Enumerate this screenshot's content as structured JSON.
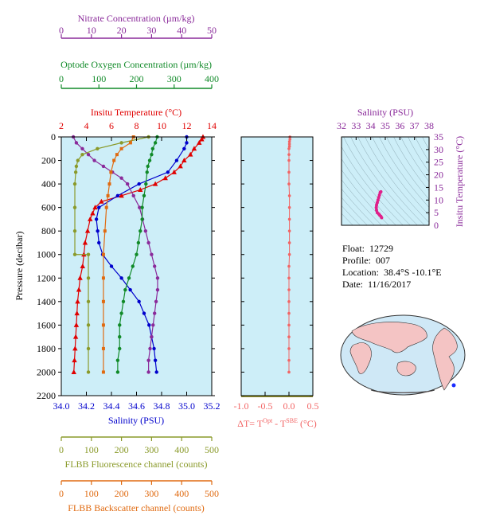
{
  "info": {
    "float_label": "Float:",
    "float_value": "12729",
    "profile_label": "Profile:",
    "profile_value": "007",
    "location_label": "Location:",
    "location_value": "38.4°S  -10.1°E",
    "date_label": "Date:",
    "date_value": "11/16/2017"
  },
  "colors": {
    "temperature": "#e00000",
    "salinity": "#0000cc",
    "nitrate": "#8a2a9a",
    "oxygen": "#108a28",
    "fluorescence": "#8a9a2a",
    "backscatter": "#e06a10",
    "delta_t": "#f26464",
    "ts": "#e0208a",
    "plot_bg": "#cdeef8",
    "axis": "#6a6a00"
  },
  "chart_data": [
    {
      "type": "line",
      "id": "main-profile",
      "ylabel": "Pressure (decibar)",
      "ylim": [
        2200,
        0
      ],
      "yticks": [
        0,
        200,
        400,
        600,
        800,
        1000,
        1200,
        1400,
        1600,
        1800,
        2000,
        2200
      ],
      "axes": {
        "temperature": {
          "label": "Insitu Temperature (°C)",
          "range": [
            2,
            14
          ],
          "ticks": [
            2,
            4,
            6,
            8,
            10,
            12,
            14
          ]
        },
        "salinity": {
          "label": "Salinity (PSU)",
          "range": [
            34.0,
            35.2
          ],
          "ticks": [
            "34.0",
            "34.2",
            "34.4",
            "34.6",
            "34.8",
            "35.0",
            "35.2"
          ]
        },
        "nitrate": {
          "label": "Nitrate Concentration (µm/kg)",
          "range": [
            0,
            50
          ],
          "ticks": [
            0,
            10,
            20,
            30,
            40,
            50
          ]
        },
        "oxygen": {
          "label": "Optode Oxygen Concentration (µm/kg)",
          "range": [
            0,
            400
          ],
          "ticks": [
            0,
            100,
            200,
            300,
            400
          ]
        },
        "fluorescence": {
          "label": "FLBB Fluorescence channel (counts)",
          "range": [
            0,
            500
          ],
          "ticks": [
            0,
            100,
            200,
            300,
            400,
            500
          ]
        },
        "backscatter": {
          "label": "FLBB Backscatter channel (counts)",
          "range": [
            0,
            500
          ],
          "ticks": [
            0,
            100,
            200,
            300,
            400,
            500
          ]
        }
      },
      "series": [
        {
          "key": "temperature",
          "marker": "triangle",
          "points": [
            [
              13.3,
              0
            ],
            [
              13.2,
              20
            ],
            [
              13.0,
              50
            ],
            [
              12.6,
              100
            ],
            [
              12.3,
              150
            ],
            [
              11.8,
              200
            ],
            [
              11.5,
              250
            ],
            [
              11.0,
              300
            ],
            [
              10.3,
              350
            ],
            [
              9.5,
              400
            ],
            [
              8.3,
              450
            ],
            [
              6.8,
              500
            ],
            [
              5.2,
              550
            ],
            [
              4.7,
              600
            ],
            [
              4.5,
              650
            ],
            [
              4.3,
              700
            ],
            [
              4.1,
              800
            ],
            [
              3.9,
              900
            ],
            [
              3.8,
              1000
            ],
            [
              3.7,
              1100
            ],
            [
              3.5,
              1200
            ],
            [
              3.4,
              1300
            ],
            [
              3.3,
              1400
            ],
            [
              3.25,
              1500
            ],
            [
              3.2,
              1600
            ],
            [
              3.15,
              1700
            ],
            [
              3.1,
              1800
            ],
            [
              3.05,
              1900
            ],
            [
              3.0,
              2000
            ]
          ]
        },
        {
          "key": "salinity",
          "marker": "dot",
          "points": [
            [
              35.0,
              0
            ],
            [
              35.0,
              50
            ],
            [
              34.98,
              100
            ],
            [
              34.92,
              200
            ],
            [
              34.85,
              300
            ],
            [
              34.62,
              400
            ],
            [
              34.45,
              500
            ],
            [
              34.3,
              600
            ],
            [
              34.28,
              700
            ],
            [
              34.29,
              800
            ],
            [
              34.3,
              900
            ],
            [
              34.33,
              1000
            ],
            [
              34.4,
              1100
            ],
            [
              34.48,
              1200
            ],
            [
              34.55,
              1300
            ],
            [
              34.62,
              1400
            ],
            [
              34.66,
              1500
            ],
            [
              34.7,
              1600
            ],
            [
              34.72,
              1700
            ],
            [
              34.74,
              1800
            ],
            [
              34.75,
              1900
            ],
            [
              34.76,
              2000
            ]
          ]
        },
        {
          "key": "nitrate",
          "marker": "dot",
          "points": [
            [
              4,
              0
            ],
            [
              5,
              50
            ],
            [
              7,
              100
            ],
            [
              9,
              150
            ],
            [
              11,
              200
            ],
            [
              14,
              250
            ],
            [
              17,
              300
            ],
            [
              20,
              350
            ],
            [
              22,
              400
            ],
            [
              24,
              500
            ],
            [
              26,
              600
            ],
            [
              27,
              700
            ],
            [
              28,
              800
            ],
            [
              29,
              900
            ],
            [
              30,
              1000
            ],
            [
              31,
              1100
            ],
            [
              32,
              1200
            ],
            [
              32,
              1300
            ],
            [
              31.5,
              1400
            ],
            [
              31,
              1500
            ],
            [
              30.5,
              1600
            ],
            [
              30,
              1700
            ],
            [
              29.5,
              1800
            ],
            [
              29,
              1900
            ],
            [
              29,
              2000
            ]
          ]
        },
        {
          "key": "oxygen",
          "marker": "dot",
          "points": [
            [
              255,
              0
            ],
            [
              250,
              50
            ],
            [
              243,
              100
            ],
            [
              240,
              150
            ],
            [
              235,
              200
            ],
            [
              230,
              250
            ],
            [
              228,
              300
            ],
            [
              225,
              400
            ],
            [
              220,
              500
            ],
            [
              215,
              600
            ],
            [
              215,
              700
            ],
            [
              210,
              800
            ],
            [
              205,
              900
            ],
            [
              200,
              1000
            ],
            [
              190,
              1100
            ],
            [
              180,
              1200
            ],
            [
              170,
              1300
            ],
            [
              165,
              1400
            ],
            [
              160,
              1500
            ],
            [
              155,
              1600
            ],
            [
              155,
              1700
            ],
            [
              155,
              1800
            ],
            [
              150,
              1900
            ],
            [
              150,
              2000
            ]
          ]
        },
        {
          "key": "fluorescence",
          "marker": "dot",
          "points": [
            [
              290,
              0
            ],
            [
              200,
              50
            ],
            [
              120,
              100
            ],
            [
              70,
              150
            ],
            [
              55,
              200
            ],
            [
              50,
              250
            ],
            [
              48,
              300
            ],
            [
              45,
              400
            ],
            [
              45,
              600
            ],
            [
              45,
              800
            ],
            [
              45,
              1000
            ],
            [
              90,
              1000
            ],
            [
              90,
              1200
            ],
            [
              90,
              1400
            ],
            [
              90,
              1600
            ],
            [
              90,
              1800
            ],
            [
              90,
              2000
            ]
          ]
        },
        {
          "key": "backscatter",
          "marker": "square",
          "points": [
            [
              240,
              0
            ],
            [
              230,
              50
            ],
            [
              200,
              100
            ],
            [
              185,
              150
            ],
            [
              175,
              200
            ],
            [
              165,
              300
            ],
            [
              160,
              400
            ],
            [
              155,
              500
            ],
            [
              150,
              600
            ],
            [
              145,
              800
            ],
            [
              140,
              1000
            ],
            [
              140,
              1200
            ],
            [
              140,
              1400
            ],
            [
              140,
              1600
            ],
            [
              140,
              1800
            ],
            [
              140,
              2000
            ]
          ]
        }
      ]
    },
    {
      "type": "line",
      "id": "delta-t",
      "xlabel": "ΔT= T^Opt - T^SBE (°C)",
      "xlabel_main": "ΔT= T",
      "xlabel_sup1": "Opt",
      "xlabel_mid": " - T",
      "xlabel_sup2": "SBE",
      "xlabel_tail": " (°C)",
      "xlim": [
        -1.0,
        0.5
      ],
      "xticks": [
        "-1.0",
        "-0.5",
        "0.0",
        "0.5"
      ],
      "ylim": [
        2200,
        0
      ],
      "points": [
        [
          0.02,
          0
        ],
        [
          0.02,
          20
        ],
        [
          0.01,
          40
        ],
        [
          0.01,
          60
        ],
        [
          0.01,
          80
        ],
        [
          0.0,
          100
        ],
        [
          0.0,
          150
        ],
        [
          0.0,
          200
        ],
        [
          0.0,
          300
        ],
        [
          0.0,
          400
        ],
        [
          0.01,
          500
        ],
        [
          0.01,
          600
        ],
        [
          0.01,
          700
        ],
        [
          0.01,
          800
        ],
        [
          0.01,
          900
        ],
        [
          0.01,
          1000
        ],
        [
          0.0,
          1100
        ],
        [
          0.0,
          1200
        ],
        [
          0.0,
          1300
        ],
        [
          0.0,
          1400
        ],
        [
          0.0,
          1500
        ],
        [
          0.0,
          1600
        ],
        [
          0.0,
          1700
        ],
        [
          0.0,
          1800
        ],
        [
          0.0,
          1900
        ],
        [
          0.0,
          2000
        ]
      ]
    },
    {
      "type": "scatter",
      "id": "ts-diagram",
      "title": "Salinity (PSU)",
      "ylabel": "Insitu Temperature (°C)",
      "xlim": [
        32,
        38
      ],
      "xticks": [
        32,
        33,
        34,
        35,
        36,
        37,
        38
      ],
      "ylim": [
        0,
        35
      ],
      "yticks": [
        0,
        5,
        10,
        15,
        20,
        25,
        30,
        35
      ],
      "points": [
        [
          34.75,
          3.0
        ],
        [
          34.7,
          3.5
        ],
        [
          34.62,
          4.0
        ],
        [
          34.55,
          4.5
        ],
        [
          34.45,
          5.0
        ],
        [
          34.4,
          6.0
        ],
        [
          34.38,
          7.0
        ],
        [
          34.4,
          8.0
        ],
        [
          34.45,
          9.0
        ],
        [
          34.5,
          10.0
        ],
        [
          34.55,
          11.0
        ],
        [
          34.6,
          12.0
        ],
        [
          34.65,
          13.0
        ],
        [
          34.7,
          13.3
        ]
      ]
    }
  ]
}
